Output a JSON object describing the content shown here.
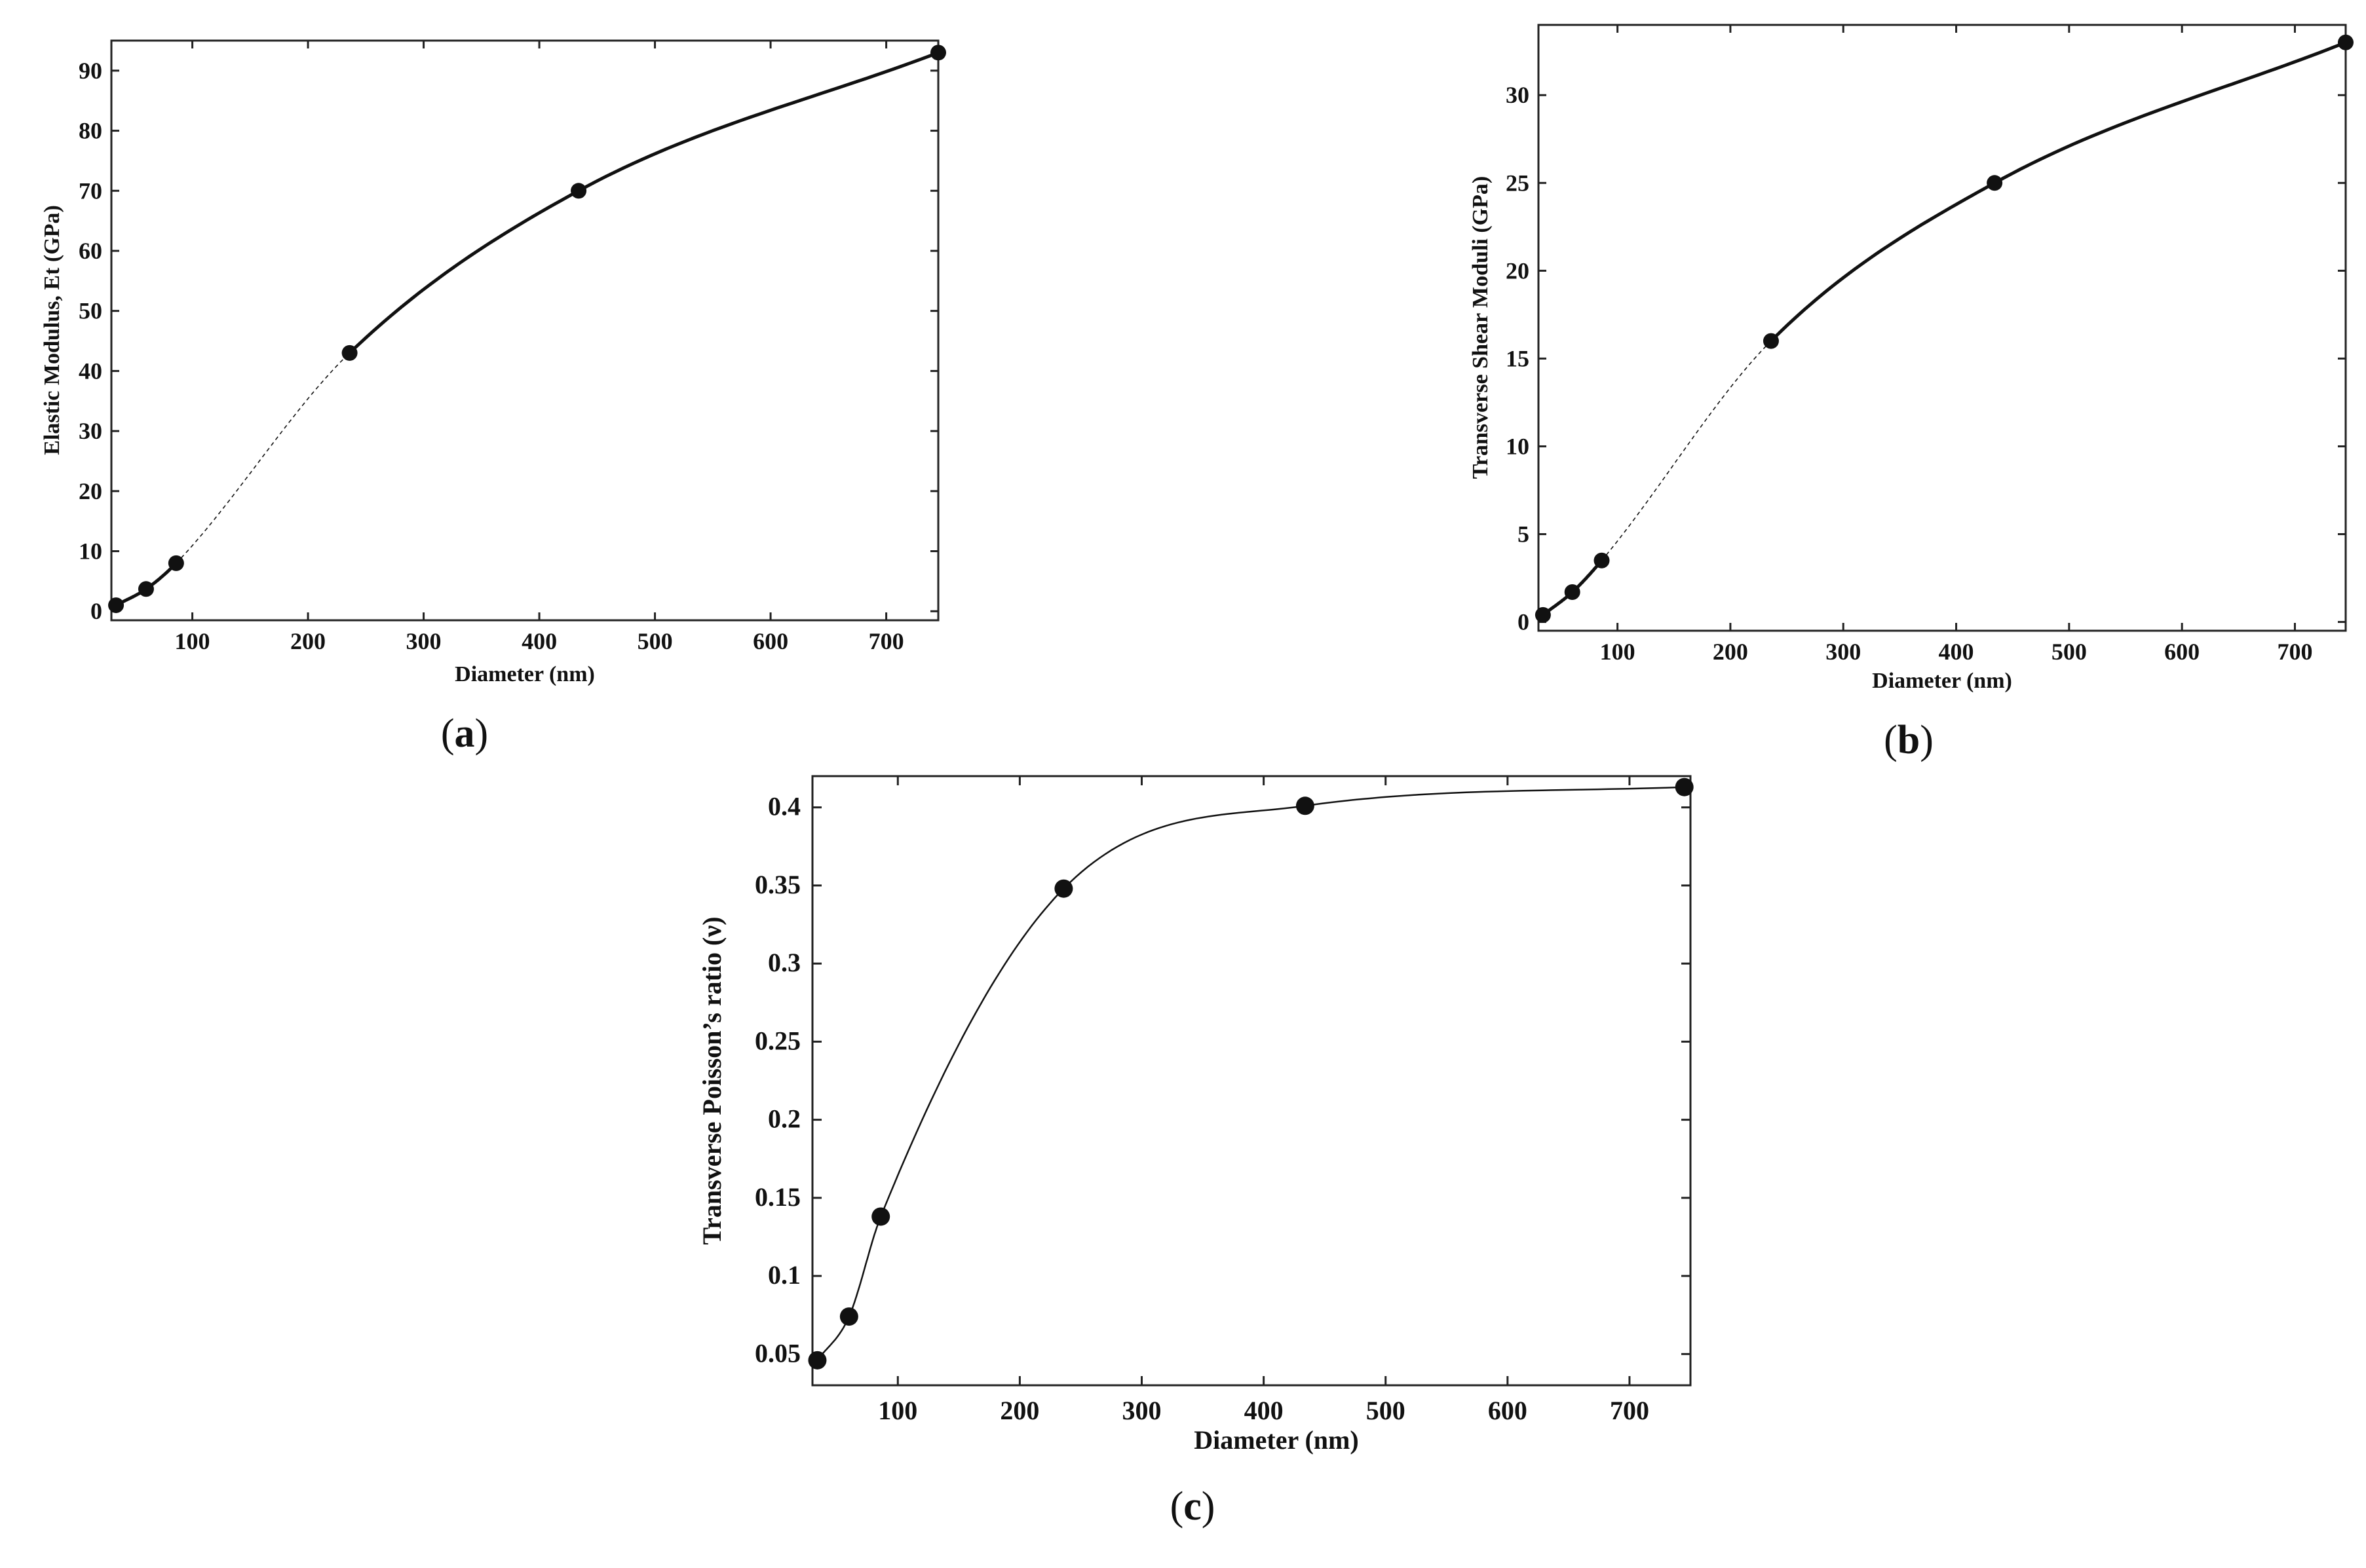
{
  "panels": [
    {
      "label": "a"
    },
    {
      "label": "b"
    },
    {
      "label": "c"
    }
  ],
  "chart_data": [
    {
      "type": "line",
      "title": "",
      "xlabel": "Diameter (nm)",
      "ylabel": "Elastic Modulus, Et (GPa)",
      "xlim": [
        30,
        745
      ],
      "ylim": [
        -1.5,
        95
      ],
      "xticks": [
        100,
        200,
        300,
        400,
        500,
        600,
        700
      ],
      "yticks": [
        0,
        10,
        20,
        30,
        40,
        50,
        60,
        70,
        80,
        90
      ],
      "x": [
        34,
        60,
        86,
        236,
        434,
        745
      ],
      "y": [
        1,
        3.7,
        8,
        43,
        70,
        93
      ]
    },
    {
      "type": "line",
      "title": "",
      "xlabel": "Diameter (nm)",
      "ylabel": "Transverse Shear Moduli (GPa)",
      "xlim": [
        30,
        745
      ],
      "ylim": [
        -0.5,
        34
      ],
      "xticks": [
        100,
        200,
        300,
        400,
        500,
        600,
        700
      ],
      "yticks": [
        0,
        5,
        10,
        15,
        20,
        25,
        30
      ],
      "x": [
        34,
        60,
        86,
        236,
        434,
        745
      ],
      "y": [
        0.4,
        1.7,
        3.5,
        16,
        25,
        33
      ]
    },
    {
      "type": "line",
      "title": "",
      "xlabel": "Diameter (nm)",
      "ylabel": "Transverse Poisson’s ratio (ν)",
      "xlim": [
        30,
        750
      ],
      "ylim": [
        0.03,
        0.42
      ],
      "xticks": [
        100,
        200,
        300,
        400,
        500,
        600,
        700
      ],
      "yticks": [
        0.05,
        0.1,
        0.15,
        0.2,
        0.25,
        0.3,
        0.35,
        0.4
      ],
      "x": [
        34,
        60,
        86,
        236,
        434,
        745
      ],
      "y": [
        0.046,
        0.074,
        0.138,
        0.348,
        0.401,
        0.413
      ]
    }
  ]
}
